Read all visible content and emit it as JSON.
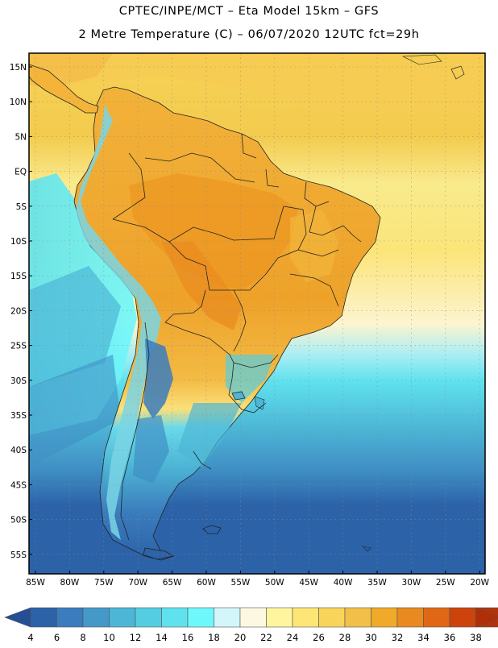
{
  "header": {
    "line1": "CPTEC/INPE/MCT –  Eta Model 15km – GFS",
    "line2": "2 Metre Temperature (C) – 06/07/2020 12UTC fct=29h"
  },
  "map": {
    "lat_labels": [
      "15N",
      "10N",
      "5N",
      "EQ",
      "5S",
      "10S",
      "15S",
      "20S",
      "25S",
      "30S",
      "35S",
      "40S",
      "45S",
      "50S",
      "55S"
    ],
    "lon_labels": [
      "85W",
      "80W",
      "75W",
      "70W",
      "65W",
      "60W",
      "55W",
      "50W",
      "45W",
      "40W",
      "35W",
      "30W",
      "25W",
      "20W"
    ]
  },
  "colorbar": {
    "labels": [
      "4",
      "6",
      "8",
      "10",
      "12",
      "14",
      "16",
      "18",
      "20",
      "22",
      "24",
      "26",
      "28",
      "30",
      "32",
      "34",
      "36",
      "38"
    ],
    "colors": [
      "#2c62a8",
      "#3a7cbd",
      "#4499c9",
      "#4db6d6",
      "#54cde2",
      "#5fe2ee",
      "#6ff8fb",
      "#d3f6fb",
      "#fdf8e1",
      "#fff59e",
      "#fde675",
      "#f8d45a",
      "#f2c048",
      "#f1a929",
      "#e88a1f",
      "#df6715",
      "#cd430c",
      "#b4330c"
    ],
    "under_color": "#244f94",
    "over_color": "#b02e08"
  }
}
